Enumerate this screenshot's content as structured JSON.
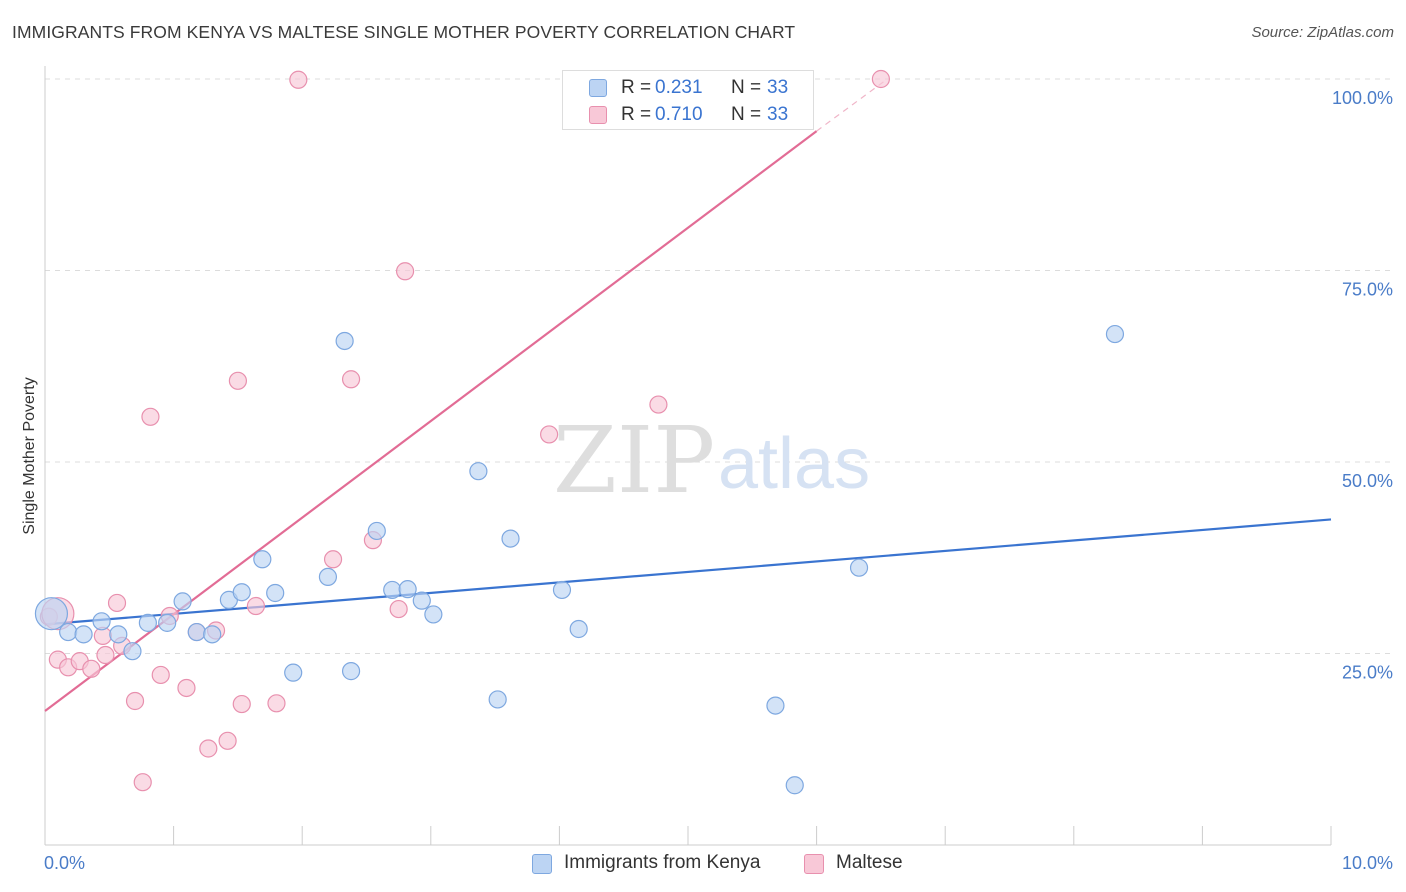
{
  "header": {
    "title": "IMMIGRANTS FROM KENYA VS MALTESE SINGLE MOTHER POVERTY CORRELATION CHART",
    "source": "Source: ZipAtlas.com"
  },
  "watermark": {
    "zip": "ZIP",
    "atlas": "atlas"
  },
  "legend": {
    "r_label": "R =",
    "n_label": "N =",
    "series": [
      {
        "name": "Immigrants from Kenya",
        "r": "0.231",
        "n": "33",
        "fill": "#bcd4f3",
        "stroke": "#7ea8e0"
      },
      {
        "name": "Maltese",
        "r": "0.710",
        "n": "33",
        "fill": "#f8c8d7",
        "stroke": "#e890ae"
      }
    ]
  },
  "chart_data": {
    "type": "scatter",
    "title": "IMMIGRANTS FROM KENYA VS MALTESE SINGLE MOTHER POVERTY CORRELATION CHART",
    "xlabel": "",
    "ylabel": "Single Mother Poverty",
    "xlim": [
      0,
      10
    ],
    "ylim": [
      0,
      100
    ],
    "x_tick_labels": [
      "0.0%",
      "10.0%"
    ],
    "y_ticks": [
      25,
      50,
      75,
      100
    ],
    "y_tick_labels": [
      "25.0%",
      "50.0%",
      "75.0%",
      "100.0%"
    ],
    "colors": {
      "kenya_fill": "#bcd4f3",
      "kenya_stroke": "#7ea8e0",
      "kenya_line": "#3a74d0",
      "maltese_fill": "#f8c8d7",
      "maltese_stroke": "#e890ae",
      "maltese_line": "#e26c95",
      "grid": "#dcdcdc"
    },
    "series": [
      {
        "name": "Immigrants from Kenya",
        "trend": {
          "x0": 0.0,
          "y0": 28.8,
          "x1": 10.0,
          "y1": 42.5
        },
        "points": [
          [
            0.05,
            30.2
          ],
          [
            0.18,
            27.8
          ],
          [
            0.3,
            27.5
          ],
          [
            0.44,
            29.2
          ],
          [
            0.57,
            27.5
          ],
          [
            0.68,
            25.3
          ],
          [
            0.8,
            29.0
          ],
          [
            0.95,
            29.0
          ],
          [
            1.07,
            31.8
          ],
          [
            1.18,
            27.8
          ],
          [
            1.3,
            27.5
          ],
          [
            1.43,
            32.0
          ],
          [
            1.53,
            33.0
          ],
          [
            1.69,
            37.3
          ],
          [
            1.79,
            32.9
          ],
          [
            1.93,
            22.5
          ],
          [
            2.2,
            35.0
          ],
          [
            2.33,
            65.8
          ],
          [
            2.38,
            22.7
          ],
          [
            2.58,
            41.0
          ],
          [
            2.7,
            33.3
          ],
          [
            2.82,
            33.4
          ],
          [
            2.93,
            31.9
          ],
          [
            3.02,
            30.1
          ],
          [
            3.37,
            48.8
          ],
          [
            3.52,
            19.0
          ],
          [
            3.62,
            40.0
          ],
          [
            4.02,
            33.3
          ],
          [
            4.15,
            28.2
          ],
          [
            5.68,
            18.2
          ],
          [
            5.83,
            7.8
          ],
          [
            6.33,
            36.2
          ],
          [
            8.32,
            66.7
          ]
        ]
      },
      {
        "name": "Maltese",
        "trend": {
          "x0": 0.0,
          "y0": 17.5,
          "x1": 6.0,
          "y1": 93.2,
          "dash_to_x": 6.55,
          "dash_to_y": 100.0
        },
        "points": [
          [
            0.03,
            29.8
          ],
          [
            0.1,
            24.2
          ],
          [
            0.18,
            23.2
          ],
          [
            0.27,
            24.0
          ],
          [
            0.36,
            23.0
          ],
          [
            0.45,
            27.3
          ],
          [
            0.47,
            24.8
          ],
          [
            0.56,
            31.6
          ],
          [
            0.6,
            26.0
          ],
          [
            0.7,
            18.8
          ],
          [
            0.76,
            8.2
          ],
          [
            0.82,
            55.9
          ],
          [
            0.9,
            22.2
          ],
          [
            0.97,
            29.9
          ],
          [
            1.1,
            20.5
          ],
          [
            1.18,
            27.8
          ],
          [
            1.27,
            12.6
          ],
          [
            1.33,
            28.0
          ],
          [
            1.42,
            13.6
          ],
          [
            1.5,
            60.6
          ],
          [
            1.53,
            18.4
          ],
          [
            1.64,
            31.2
          ],
          [
            1.8,
            18.5
          ],
          [
            1.97,
            99.9
          ],
          [
            2.24,
            37.3
          ],
          [
            2.38,
            60.8
          ],
          [
            2.55,
            39.8
          ],
          [
            2.75,
            30.8
          ],
          [
            2.8,
            74.9
          ],
          [
            3.92,
            53.6
          ],
          [
            4.77,
            57.5
          ],
          [
            6.5,
            100.0
          ],
          [
            0.1,
            30.2
          ]
        ]
      }
    ]
  }
}
